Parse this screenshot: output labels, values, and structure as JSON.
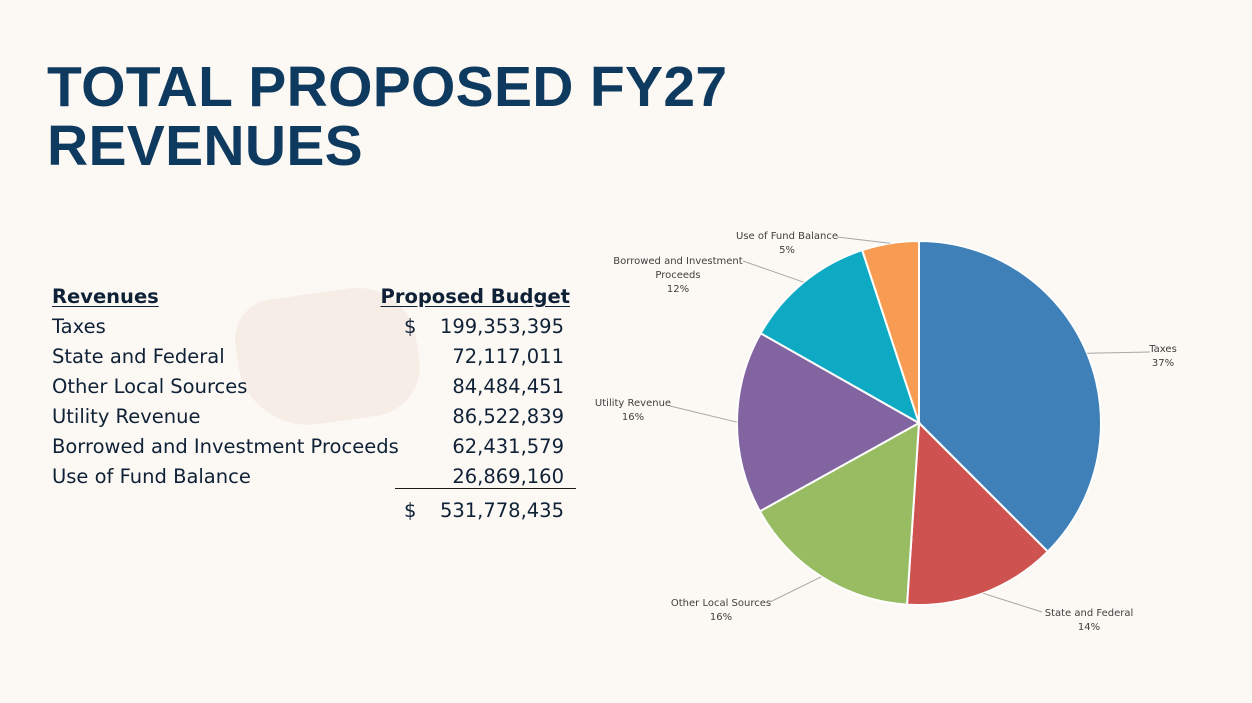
{
  "page": {
    "title_line1": "TOTAL PROPOSED FY27",
    "title_line2": "REVENUES"
  },
  "table": {
    "headers": {
      "label": "Revenues",
      "budget": "Proposed Budget"
    },
    "rows": [
      {
        "label": "Taxes",
        "currency": "$",
        "amount": "199,353,395"
      },
      {
        "label": "State and Federal",
        "currency": "",
        "amount": "72,117,011"
      },
      {
        "label": "Other Local Sources",
        "currency": "",
        "amount": "84,484,451"
      },
      {
        "label": "Utility Revenue",
        "currency": "",
        "amount": "86,522,839"
      },
      {
        "label": "Borrowed and Investment Proceeds",
        "currency": "",
        "amount": "62,431,579"
      },
      {
        "label": "Use of Fund Balance",
        "currency": "",
        "amount": "26,869,160"
      }
    ],
    "total": {
      "currency": "$",
      "amount": "531,778,435"
    }
  },
  "chart_data": {
    "type": "pie",
    "title": "",
    "slices": [
      {
        "name": "Taxes",
        "value": 199353395,
        "pct_label": "37%",
        "color": "#4080b8"
      },
      {
        "name": "State and Federal",
        "value": 72117011,
        "pct_label": "14%",
        "color": "#ce5350"
      },
      {
        "name": "Other Local Sources",
        "value": 84484451,
        "pct_label": "16%",
        "color": "#97bc62"
      },
      {
        "name": "Utility Revenue",
        "value": 86522839,
        "pct_label": "16%",
        "color": "#8264a0"
      },
      {
        "name": "Borrowed and Investment Proceeds",
        "value": 62431579,
        "pct_label": "12%",
        "color": "#0ea9c2"
      },
      {
        "name": "Use of Fund Balance",
        "value": 26869160,
        "pct_label": "5%",
        "color": "#f79c52"
      }
    ],
    "start_angle_deg": 0,
    "direction": "clockwise"
  }
}
